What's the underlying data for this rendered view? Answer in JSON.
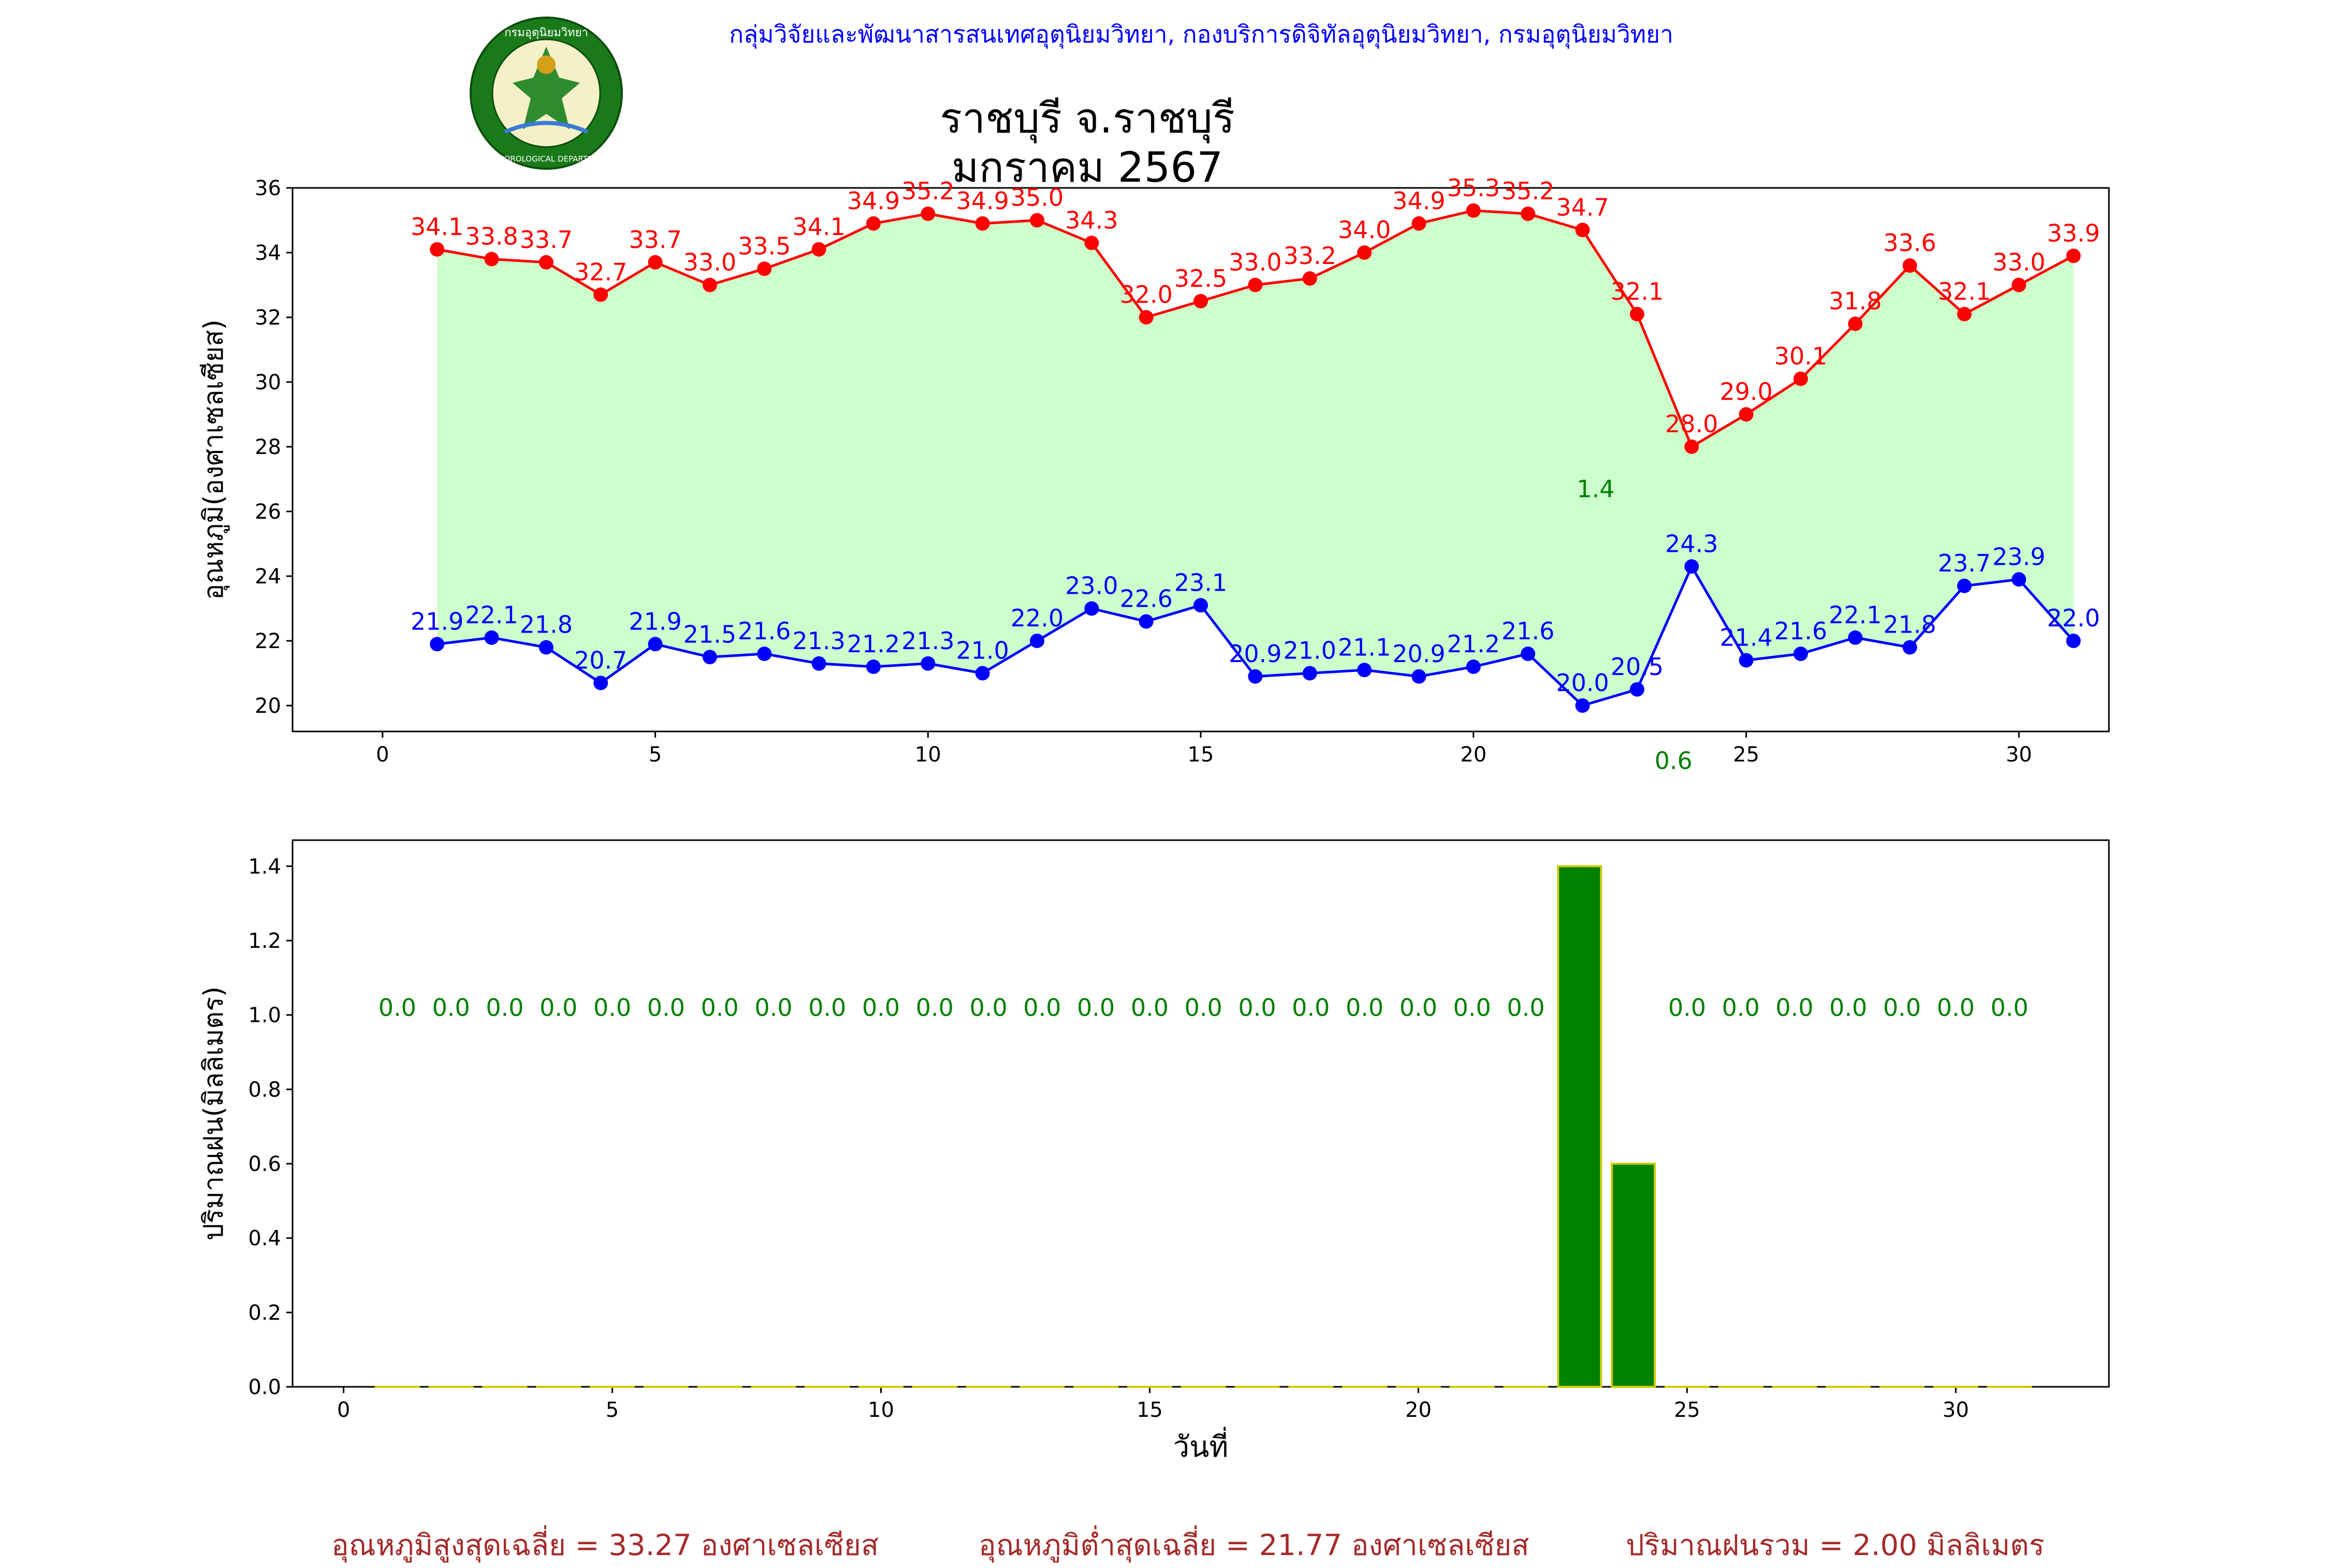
{
  "header": {
    "org_text": "กลุ่มวิจัยและพัฒนาสารสนเทศอุตุนิยมวิทยา, กองบริการดิจิทัลอุตุนิยมวิทยา, กรมอุตุนิยมวิทยา",
    "logo_text": "METEOROLOGICAL DEPARTMENT",
    "logo_top_text": "กรมอุตุนิยมวิทยา"
  },
  "title_line1": "ราชบุรี จ.ราชบุรี",
  "title_line2": "มกราคม 2567",
  "chart_data": [
    {
      "type": "line",
      "ylabel": "อุณหภูมิ(องศาเซลเซียส)",
      "xlim": [
        -1.65,
        31.65
      ],
      "ylim": [
        19.2,
        36
      ],
      "xticks": [
        0,
        5,
        10,
        15,
        20,
        25,
        30
      ],
      "yticks": [
        20,
        22,
        24,
        26,
        28,
        30,
        32,
        34,
        36
      ],
      "x": [
        1,
        2,
        3,
        4,
        5,
        6,
        7,
        8,
        9,
        10,
        11,
        12,
        13,
        14,
        15,
        16,
        17,
        18,
        19,
        20,
        21,
        22,
        23,
        24,
        25,
        26,
        27,
        28,
        29,
        30,
        31
      ],
      "fill_between_color": "#ccffcc",
      "series": [
        {
          "color": "#ff0000",
          "values": [
            34.1,
            33.8,
            33.7,
            32.7,
            33.7,
            33.0,
            33.5,
            34.1,
            34.9,
            35.2,
            34.9,
            35.0,
            34.3,
            32.0,
            32.5,
            33.0,
            33.2,
            34.0,
            34.9,
            35.3,
            35.2,
            34.7,
            32.1,
            28.0,
            29.0,
            30.1,
            31.8,
            33.6,
            32.1,
            33.0,
            33.9
          ]
        },
        {
          "color": "#0000ff",
          "values": [
            21.9,
            22.1,
            21.8,
            20.7,
            21.9,
            21.5,
            21.6,
            21.3,
            21.2,
            21.3,
            21.0,
            22.0,
            23.0,
            22.6,
            23.1,
            20.9,
            21.0,
            21.1,
            20.9,
            21.2,
            21.6,
            20.0,
            20.5,
            24.3,
            21.4,
            21.6,
            22.1,
            21.8,
            23.7,
            23.9,
            22.0
          ]
        }
      ],
      "rain_annotations": [
        {
          "day": 23,
          "text": "1.4",
          "y": 26.7
        },
        {
          "day": 24,
          "text": "0.6",
          "y": 18.3
        }
      ],
      "annotation_color": "#008000"
    },
    {
      "type": "bar",
      "xlabel": "วันที่",
      "ylabel": "ปริมาณฝน(มิลลิเมตร)",
      "xlim": [
        -0.95,
        32.85
      ],
      "ylim": [
        0,
        1.47
      ],
      "xticks": [
        0,
        5,
        10,
        15,
        20,
        25,
        30
      ],
      "yticks": [
        0.0,
        0.2,
        0.4,
        0.6,
        0.8,
        1.0,
        1.2,
        1.4
      ],
      "x": [
        1,
        2,
        3,
        4,
        5,
        6,
        7,
        8,
        9,
        10,
        11,
        12,
        13,
        14,
        15,
        16,
        17,
        18,
        19,
        20,
        21,
        22,
        23,
        24,
        25,
        26,
        27,
        28,
        29,
        30,
        31
      ],
      "values": [
        0.0,
        0.0,
        0.0,
        0.0,
        0.0,
        0.0,
        0.0,
        0.0,
        0.0,
        0.0,
        0.0,
        0.0,
        0.0,
        0.0,
        0.0,
        0.0,
        0.0,
        0.0,
        0.0,
        0.0,
        0.0,
        0.0,
        1.4,
        0.6,
        0.0,
        0.0,
        0.0,
        0.0,
        0.0,
        0.0,
        0.0
      ],
      "bar_color": "#008000",
      "bar_edge_color": "#cccc00",
      "label_y": 1.02,
      "label_color": "#008000"
    }
  ],
  "footer": {
    "avg_max": "อุณหภูมิสูงสุดเฉลี่ย = 33.27 องศาเซลเซียส",
    "avg_min": "อุณหภูมิต่ำสุดเฉลี่ย = 21.77 องศาเซลเซียส",
    "rain_total": "ปริมาณฝนรวม = 2.00 มิลลิเมตร"
  }
}
